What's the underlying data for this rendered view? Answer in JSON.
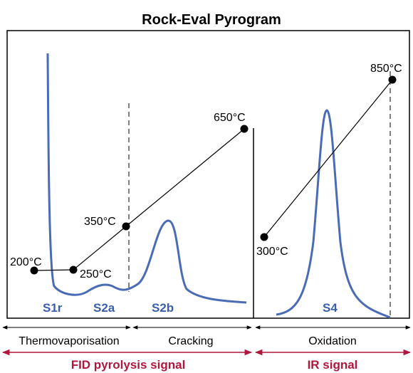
{
  "title": "Rock-Eval Pyrogram",
  "temperatures": [
    "200°C",
    "250°C",
    "350°C",
    "650°C",
    "300°C",
    "850°C"
  ],
  "peaks": [
    "S1r",
    "S2a",
    "S2b",
    "S4"
  ],
  "phases": [
    "Thermovaporisation",
    "Cracking",
    "Oxidation"
  ],
  "signals": [
    "FID pyrolysis signal",
    "IR signal"
  ]
}
